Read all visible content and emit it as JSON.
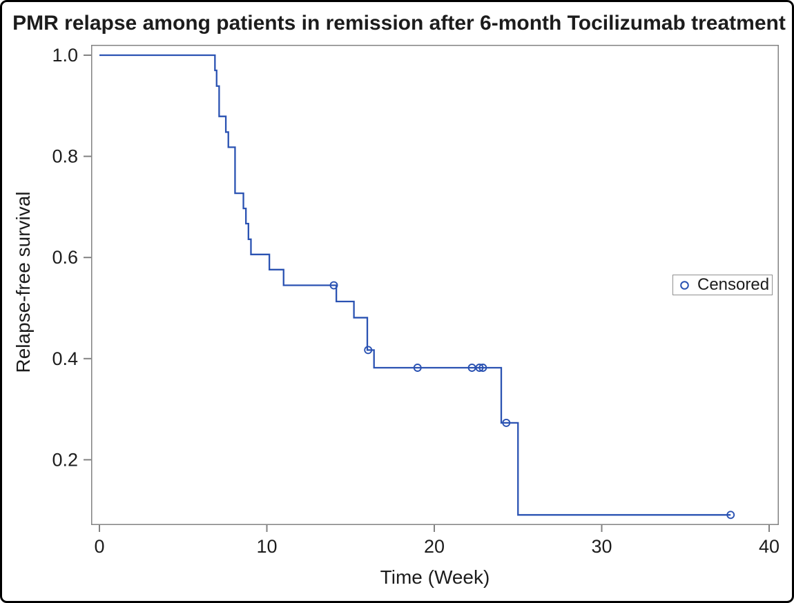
{
  "colors": {
    "line": "#2a52b2",
    "axis": "#828282",
    "text": "#1c1c1c",
    "frame_border": "#000000",
    "legend_border": "#8f8f8f",
    "background": "#ffffff"
  },
  "chart_data": {
    "type": "line",
    "subtype": "kaplan-meier-step",
    "title": "PMR relapse among patients in remission after 6-month Tocilizumab treatment",
    "xlabel": "Time (Week)",
    "ylabel": "Relapse-free survival",
    "xlim": [
      0,
      40
    ],
    "ylim": [
      0.07,
      1.0
    ],
    "grid": false,
    "legend": {
      "label": "Censored",
      "marker": "open-circle-icon",
      "position": "right-middle"
    },
    "xticks": [
      {
        "label": "0",
        "value": 0
      },
      {
        "label": "10",
        "value": 10
      },
      {
        "label": "20",
        "value": 20
      },
      {
        "label": "30",
        "value": 30
      },
      {
        "label": "40",
        "value": 40
      }
    ],
    "yticks": [
      {
        "label": "1.0",
        "value": 1.0
      },
      {
        "label": "0.8",
        "value": 0.8
      },
      {
        "label": "0.6",
        "value": 0.6
      },
      {
        "label": "0.4",
        "value": 0.4
      },
      {
        "label": "0.2",
        "value": 0.2
      }
    ],
    "series": [
      {
        "name": "Relapse-free survival",
        "start": [
          0,
          1.0
        ],
        "end_time": 37.7,
        "steps": [
          [
            6.9,
            0.97
          ],
          [
            7.0,
            0.939
          ],
          [
            7.15,
            0.879
          ],
          [
            7.55,
            0.848
          ],
          [
            7.7,
            0.818
          ],
          [
            8.1,
            0.727
          ],
          [
            8.6,
            0.697
          ],
          [
            8.75,
            0.667
          ],
          [
            8.9,
            0.636
          ],
          [
            9.05,
            0.606
          ],
          [
            10.15,
            0.576
          ],
          [
            11.0,
            0.545
          ],
          [
            14.15,
            0.513
          ],
          [
            15.2,
            0.481
          ],
          [
            16.0,
            0.417
          ],
          [
            16.4,
            0.382
          ],
          [
            24.0,
            0.273
          ],
          [
            25.0,
            0.091
          ]
        ],
        "censored": [
          [
            14.0,
            0.545
          ],
          [
            16.05,
            0.417
          ],
          [
            19.0,
            0.382
          ],
          [
            22.25,
            0.382
          ],
          [
            22.7,
            0.382
          ],
          [
            22.9,
            0.382
          ],
          [
            24.3,
            0.273
          ],
          [
            37.7,
            0.091
          ]
        ]
      }
    ]
  }
}
